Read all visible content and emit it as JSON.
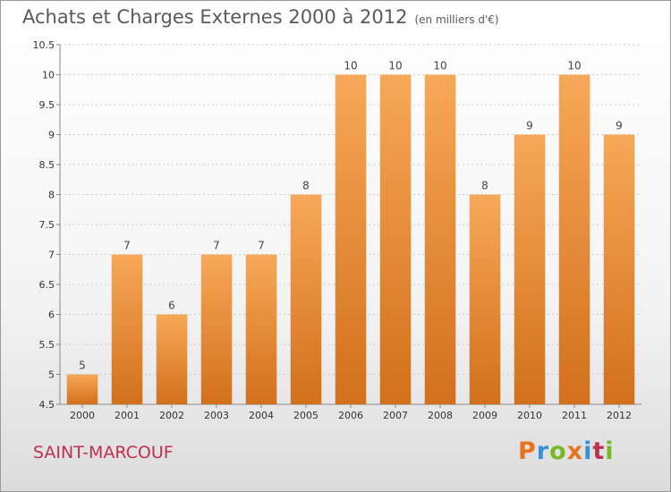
{
  "header": {
    "title": "Achats et Charges Externes 2000 à 2012",
    "subtitle": "(en milliers d'€)"
  },
  "footer": {
    "commune": "SAINT-MARCOUF",
    "brand": "Proxiti",
    "brand_colors": [
      "#e8731c",
      "#3c8fd1",
      "#77b82a",
      "#e8731c",
      "#3c8fd1",
      "#c0304f",
      "#77b82a"
    ]
  },
  "colors": {
    "bar_top": "#f7a858",
    "bar_bottom": "#d2701c",
    "grid": "#cccccc",
    "axis": "#888888"
  },
  "chart_data": {
    "type": "bar",
    "title": "Achats et Charges Externes 2000 à 2012",
    "subtitle": "(en milliers d'€)",
    "categories": [
      "2000",
      "2001",
      "2002",
      "2003",
      "2004",
      "2005",
      "2006",
      "2007",
      "2008",
      "2009",
      "2010",
      "2011",
      "2012"
    ],
    "values": [
      5,
      7,
      6,
      7,
      7,
      8,
      10,
      10,
      10,
      8,
      9,
      10,
      9
    ],
    "ylim": [
      4.5,
      10.5
    ],
    "yticks": [
      "4.5",
      "5",
      "5.5",
      "6",
      "6.5",
      "7",
      "7.5",
      "8",
      "8.5",
      "9",
      "9.5",
      "10",
      "10.5"
    ],
    "grid": true,
    "xlabel": "",
    "ylabel": ""
  }
}
